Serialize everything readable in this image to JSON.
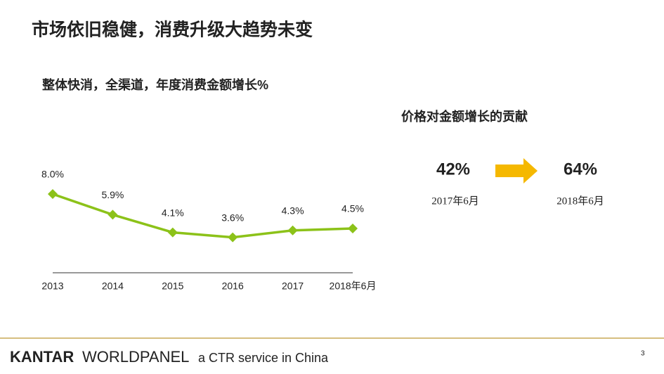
{
  "title": "市场依旧稳健，消费升级大趋势未变",
  "chart_data": {
    "type": "line",
    "title": "整体快消，全渠道，年度消费金额增长%",
    "categories": [
      "2013",
      "2014",
      "2015",
      "2016",
      "2017",
      "2018年6月"
    ],
    "values": [
      8.0,
      5.9,
      4.1,
      3.6,
      4.3,
      4.5
    ],
    "value_labels": [
      "8.0%",
      "5.9%",
      "4.1%",
      "3.6%",
      "4.3%",
      "4.5%"
    ],
    "color": "#8cc219",
    "ylim": [
      0,
      8
    ]
  },
  "contribution": {
    "title": "价格对金额增长的贡献",
    "items": [
      {
        "value": "42%",
        "label": "2017年6月"
      },
      {
        "value": "64%",
        "label": "2018年6月"
      }
    ]
  },
  "footer": {
    "brand_1": "KANTAR",
    "brand_2": "WORLDPANEL",
    "tagline": "a CTR service in China",
    "page": "3"
  }
}
